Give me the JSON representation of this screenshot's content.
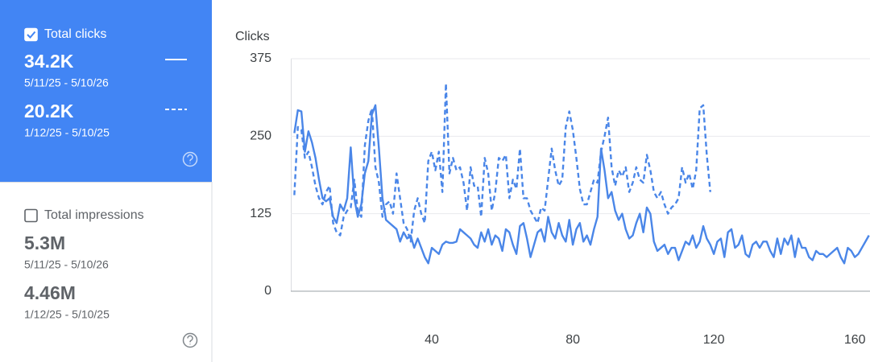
{
  "cards": [
    {
      "label": "Total clicks",
      "checked": true,
      "metrics": [
        {
          "value": "34.2K",
          "range": "5/11/25 - 5/10/26"
        },
        {
          "value": "20.2K",
          "range": "1/12/25 - 5/10/25"
        }
      ]
    },
    {
      "label": "Total impressions",
      "checked": false,
      "metrics": [
        {
          "value": "5.3M",
          "range": "5/11/25 - 5/10/26"
        },
        {
          "value": "4.46M",
          "range": "1/12/25 - 5/10/25"
        }
      ]
    }
  ],
  "chart_data": {
    "type": "line",
    "y_label": "Clicks",
    "x": [
      1,
      2,
      3,
      4,
      5,
      6,
      7,
      8,
      9,
      10,
      11,
      12,
      13,
      14,
      15,
      16,
      17,
      18,
      19,
      20,
      21,
      22,
      23,
      24,
      25,
      26,
      27,
      28,
      29,
      30,
      31,
      32,
      33,
      34,
      35,
      36,
      37,
      38,
      39,
      40,
      41,
      42,
      43,
      44,
      45,
      46,
      47,
      48,
      49,
      50,
      51,
      52,
      53,
      54,
      55,
      56,
      57,
      58,
      59,
      60,
      61,
      62,
      63,
      64,
      65,
      66,
      67,
      68,
      69,
      70,
      71,
      72,
      73,
      74,
      75,
      76,
      77,
      78,
      79,
      80,
      81,
      82,
      83,
      84,
      85,
      86,
      87,
      88,
      89,
      90,
      91,
      92,
      93,
      94,
      95,
      96,
      97,
      98,
      99,
      100,
      101,
      102,
      103,
      104,
      105,
      106,
      107,
      108,
      109,
      110,
      111,
      112,
      113,
      114,
      115,
      116,
      117,
      118,
      119,
      120,
      121,
      122,
      123,
      124,
      125,
      126,
      127,
      128,
      129,
      130,
      131,
      132,
      133,
      134,
      135,
      136,
      137,
      138,
      139,
      140,
      141,
      142,
      143,
      144,
      145,
      146,
      147,
      148,
      149,
      150,
      151,
      152,
      153,
      154,
      155,
      156,
      157,
      158,
      159,
      160,
      161,
      162,
      163,
      164
    ],
    "series": [
      {
        "color": "#4a86e8",
        "line_style": "solid",
        "values": [
          255,
          292,
          290,
          225,
          258,
          240,
          215,
          180,
          150,
          145,
          150,
          120,
          110,
          140,
          130,
          150,
          232,
          150,
          120,
          140,
          190,
          210,
          285,
          300,
          230,
          150,
          115,
          110,
          105,
          100,
          80,
          95,
          85,
          90,
          70,
          85,
          70,
          55,
          45,
          70,
          65,
          60,
          75,
          80,
          78,
          78,
          80,
          100,
          95,
          90,
          85,
          75,
          70,
          95,
          80,
          100,
          75,
          90,
          85,
          65,
          100,
          95,
          75,
          60,
          105,
          110,
          85,
          55,
          75,
          95,
          100,
          80,
          120,
          95,
          85,
          110,
          90,
          80,
          115,
          75,
          100,
          110,
          80,
          90,
          75,
          100,
          120,
          230,
          195,
          150,
          160,
          130,
          115,
          125,
          100,
          85,
          90,
          110,
          125,
          95,
          135,
          125,
          80,
          65,
          70,
          75,
          60,
          70,
          70,
          50,
          65,
          80,
          75,
          90,
          70,
          80,
          105,
          85,
          75,
          60,
          80,
          85,
          55,
          95,
          100,
          70,
          75,
          90,
          60,
          55,
          75,
          80,
          70,
          80,
          80,
          65,
          55,
          85,
          60,
          85,
          75,
          90,
          55,
          85,
          70,
          70,
          55,
          50,
          65,
          60,
          60,
          55,
          60,
          65,
          70,
          55,
          45,
          70,
          65,
          55,
          60,
          70,
          80,
          90
        ]
      },
      {
        "color": "#4a86e8",
        "line_style": "dashed",
        "values": [
          155,
          265,
          260,
          215,
          225,
          200,
          170,
          150,
          140,
          160,
          170,
          110,
          95,
          90,
          120,
          130,
          135,
          180,
          130,
          120,
          235,
          275,
          295,
          200,
          175,
          120,
          140,
          145,
          125,
          190,
          150,
          110,
          100,
          80,
          130,
          150,
          125,
          110,
          210,
          225,
          195,
          225,
          160,
          335,
          190,
          215,
          195,
          200,
          175,
          130,
          200,
          170,
          170,
          120,
          215,
          190,
          130,
          160,
          215,
          210,
          220,
          150,
          180,
          165,
          230,
          150,
          150,
          130,
          120,
          110,
          135,
          130,
          180,
          230,
          195,
          170,
          180,
          265,
          290,
          260,
          215,
          165,
          140,
          140,
          160,
          180,
          175,
          225,
          250,
          280,
          200,
          170,
          195,
          185,
          200,
          160,
          175,
          200,
          180,
          175,
          220,
          195,
          160,
          150,
          160,
          140,
          125,
          135,
          140,
          150,
          200,
          175,
          190,
          165,
          195,
          295,
          300,
          220,
          160,
          null,
          null,
          null,
          null,
          null,
          null,
          null,
          null,
          null,
          null,
          null,
          null,
          null,
          null,
          null,
          null,
          null,
          null,
          null,
          null,
          null,
          null,
          null,
          null,
          null,
          null,
          null,
          null,
          null,
          null,
          null,
          null,
          null,
          null,
          null,
          null,
          null,
          null,
          null,
          null,
          null,
          null,
          null,
          null,
          null
        ]
      }
    ],
    "xlim": [
      0,
      164.3
    ],
    "ylim": [
      0,
      375
    ],
    "xticks": [
      40,
      80,
      120,
      160
    ],
    "yticks": [
      0,
      125,
      250,
      375
    ],
    "grid": true
  }
}
